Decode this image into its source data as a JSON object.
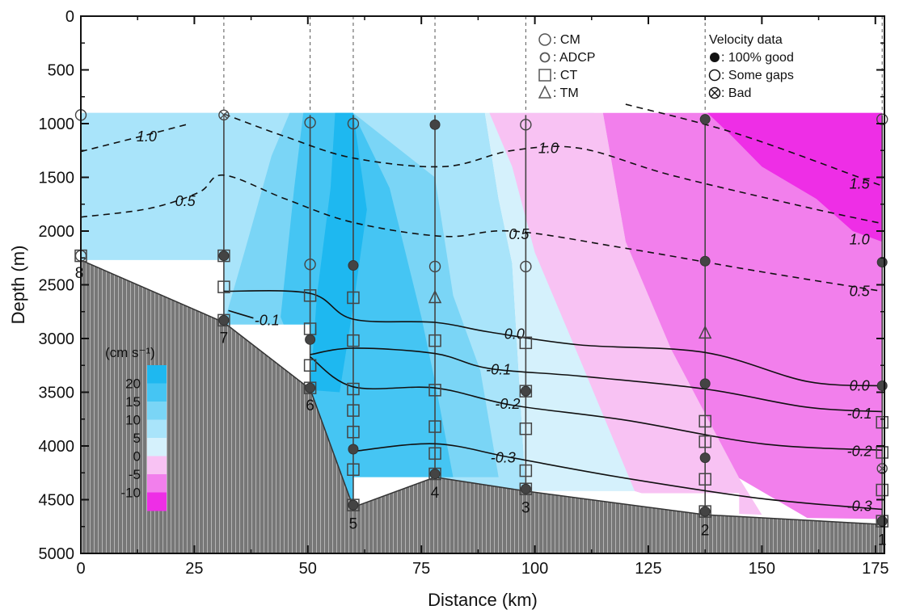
{
  "chart_data": {
    "type": "section",
    "xlabel": "Distance (km)",
    "ylabel": "Depth (m)",
    "xlim": [
      0,
      177
    ],
    "ylim": [
      5000,
      0
    ],
    "xticks": [
      "0",
      "25",
      "50",
      "75",
      "100",
      "125",
      "150",
      "175"
    ],
    "xtick_values": [
      0,
      25,
      50,
      75,
      100,
      125,
      150,
      175
    ],
    "yticks": [
      "0",
      "500",
      "1000",
      "1500",
      "2000",
      "2500",
      "3000",
      "3500",
      "4000",
      "4500",
      "5000"
    ],
    "ytick_values": [
      0,
      500,
      1000,
      1500,
      2000,
      2500,
      3000,
      3500,
      4000,
      4500,
      5000
    ],
    "colorbar": {
      "unit_label": "(cm s⁻¹)",
      "levels": [
        "20",
        "15",
        "10",
        "5",
        "0",
        "-5",
        "-10"
      ],
      "colors": [
        "#1eb8f0",
        "#45c5f3",
        "#7ad5f6",
        "#a9e4fa",
        "#d5f1fc",
        "#f8c2f3",
        "#f27fec",
        "#ee2ee6"
      ]
    },
    "color_bands": [
      {
        "level": "5",
        "color": "#a9e4fa"
      },
      {
        "level": "10",
        "color": "#7ad5f6"
      },
      {
        "level": "15",
        "color": "#45c5f3"
      },
      {
        "level": "20",
        "color": "#1eb8f0"
      },
      {
        "level": "0",
        "color": "#d5f1fc"
      },
      {
        "level": "-5",
        "color": "#f8c2f3"
      },
      {
        "level": "-10",
        "color": "#f27fec"
      },
      {
        "level": "-15",
        "color": "#ee2ee6"
      }
    ],
    "stations": [
      {
        "label": "8",
        "x": 0,
        "bottom_depth": 2240
      },
      {
        "label": "7",
        "x": 31.5,
        "bottom_depth": 2830
      },
      {
        "label": "6",
        "x": 50.5,
        "bottom_depth": 3460
      },
      {
        "label": "5",
        "x": 60,
        "bottom_depth": 4560
      },
      {
        "label": "4",
        "x": 78,
        "bottom_depth": 4270
      },
      {
        "label": "3",
        "x": 98,
        "bottom_depth": 4410
      },
      {
        "label": "2",
        "x": 137.5,
        "bottom_depth": 4620
      },
      {
        "label": "1",
        "x": 176.5,
        "bottom_depth": 4710
      }
    ],
    "bathymetry": [
      [
        0,
        2270
      ],
      [
        31.5,
        2850
      ],
      [
        50.5,
        3470
      ],
      [
        60,
        4570
      ],
      [
        78,
        4290
      ],
      [
        98,
        4420
      ],
      [
        137.5,
        4640
      ],
      [
        176.5,
        4730
      ]
    ],
    "instruments": [
      {
        "x": 0,
        "depth": 920,
        "symbol": "circle",
        "quality": "some_gaps"
      },
      {
        "x": 0,
        "depth": 2230,
        "symbol": "square",
        "quality": "none"
      },
      {
        "x": 0,
        "depth": 2230,
        "symbol": "circle",
        "quality": "some_gaps"
      },
      {
        "x": 31.5,
        "depth": 920,
        "symbol": "circle",
        "quality": "bad"
      },
      {
        "x": 31.5,
        "depth": 2230,
        "symbol": "square",
        "quality": "none"
      },
      {
        "x": 31.5,
        "depth": 2230,
        "symbol": "circle",
        "quality": "good"
      },
      {
        "x": 31.5,
        "depth": 2520,
        "symbol": "square",
        "quality": "none"
      },
      {
        "x": 31.5,
        "depth": 2830,
        "symbol": "square",
        "quality": "none"
      },
      {
        "x": 31.5,
        "depth": 2830,
        "symbol": "circle",
        "quality": "good"
      },
      {
        "x": 50.5,
        "depth": 990,
        "symbol": "circle",
        "quality": "some_gaps"
      },
      {
        "x": 50.5,
        "depth": 2310,
        "symbol": "circle",
        "quality": "some_gaps"
      },
      {
        "x": 50.5,
        "depth": 2600,
        "symbol": "square",
        "quality": "none"
      },
      {
        "x": 50.5,
        "depth": 2910,
        "symbol": "square",
        "quality": "none"
      },
      {
        "x": 50.5,
        "depth": 3010,
        "symbol": "circle",
        "quality": "good"
      },
      {
        "x": 50.5,
        "depth": 3250,
        "symbol": "square",
        "quality": "none"
      },
      {
        "x": 50.5,
        "depth": 3460,
        "symbol": "square",
        "quality": "none"
      },
      {
        "x": 50.5,
        "depth": 3460,
        "symbol": "circle",
        "quality": "good"
      },
      {
        "x": 60,
        "depth": 1000,
        "symbol": "circle",
        "quality": "some_gaps"
      },
      {
        "x": 60,
        "depth": 2320,
        "symbol": "circle",
        "quality": "good"
      },
      {
        "x": 60,
        "depth": 2620,
        "symbol": "square",
        "quality": "none"
      },
      {
        "x": 60,
        "depth": 3020,
        "symbol": "square",
        "quality": "none"
      },
      {
        "x": 60,
        "depth": 3470,
        "symbol": "square",
        "quality": "none"
      },
      {
        "x": 60,
        "depth": 3670,
        "symbol": "square",
        "quality": "none"
      },
      {
        "x": 60,
        "depth": 3870,
        "symbol": "square",
        "quality": "none"
      },
      {
        "x": 60,
        "depth": 4030,
        "symbol": "circle",
        "quality": "good"
      },
      {
        "x": 60,
        "depth": 4220,
        "symbol": "square",
        "quality": "none"
      },
      {
        "x": 60,
        "depth": 4550,
        "symbol": "square",
        "quality": "none"
      },
      {
        "x": 60,
        "depth": 4550,
        "symbol": "circle",
        "quality": "good"
      },
      {
        "x": 78,
        "depth": 1010,
        "symbol": "circle",
        "quality": "good"
      },
      {
        "x": 78,
        "depth": 2330,
        "symbol": "circle",
        "quality": "some_gaps"
      },
      {
        "x": 78,
        "depth": 2620,
        "symbol": "triangle",
        "quality": "none"
      },
      {
        "x": 78,
        "depth": 3020,
        "symbol": "square",
        "quality": "none"
      },
      {
        "x": 78,
        "depth": 3480,
        "symbol": "square",
        "quality": "none"
      },
      {
        "x": 78,
        "depth": 3820,
        "symbol": "square",
        "quality": "none"
      },
      {
        "x": 78,
        "depth": 4070,
        "symbol": "square",
        "quality": "none"
      },
      {
        "x": 78,
        "depth": 4260,
        "symbol": "square",
        "quality": "none"
      },
      {
        "x": 78,
        "depth": 4260,
        "symbol": "circle",
        "quality": "good"
      },
      {
        "x": 98,
        "depth": 1010,
        "symbol": "circle",
        "quality": "some_gaps"
      },
      {
        "x": 98,
        "depth": 2330,
        "symbol": "circle",
        "quality": "some_gaps"
      },
      {
        "x": 98,
        "depth": 3040,
        "symbol": "square",
        "quality": "none"
      },
      {
        "x": 98,
        "depth": 3490,
        "symbol": "square",
        "quality": "none"
      },
      {
        "x": 98,
        "depth": 3490,
        "symbol": "circle",
        "quality": "good"
      },
      {
        "x": 98,
        "depth": 3840,
        "symbol": "square",
        "quality": "none"
      },
      {
        "x": 98,
        "depth": 4230,
        "symbol": "square",
        "quality": "none"
      },
      {
        "x": 98,
        "depth": 4400,
        "symbol": "square",
        "quality": "none"
      },
      {
        "x": 98,
        "depth": 4400,
        "symbol": "circle",
        "quality": "good"
      },
      {
        "x": 137.5,
        "depth": 960,
        "symbol": "circle",
        "quality": "good"
      },
      {
        "x": 137.5,
        "depth": 2280,
        "symbol": "circle",
        "quality": "good"
      },
      {
        "x": 137.5,
        "depth": 2950,
        "symbol": "triangle",
        "quality": "none"
      },
      {
        "x": 137.5,
        "depth": 3420,
        "symbol": "circle",
        "quality": "good"
      },
      {
        "x": 137.5,
        "depth": 3770,
        "symbol": "square",
        "quality": "none"
      },
      {
        "x": 137.5,
        "depth": 3960,
        "symbol": "square",
        "quality": "none"
      },
      {
        "x": 137.5,
        "depth": 4110,
        "symbol": "circle",
        "quality": "good"
      },
      {
        "x": 137.5,
        "depth": 4310,
        "symbol": "square",
        "quality": "none"
      },
      {
        "x": 137.5,
        "depth": 4610,
        "symbol": "square",
        "quality": "none"
      },
      {
        "x": 137.5,
        "depth": 4610,
        "symbol": "circle",
        "quality": "good"
      },
      {
        "x": 176.5,
        "depth": 960,
        "symbol": "circle",
        "quality": "some_gaps"
      },
      {
        "x": 176.5,
        "depth": 2290,
        "symbol": "circle",
        "quality": "good"
      },
      {
        "x": 176.5,
        "depth": 3440,
        "symbol": "circle",
        "quality": "good"
      },
      {
        "x": 176.5,
        "depth": 3780,
        "symbol": "square",
        "quality": "none"
      },
      {
        "x": 176.5,
        "depth": 4060,
        "symbol": "square",
        "quality": "none"
      },
      {
        "x": 176.5,
        "depth": 4210,
        "symbol": "circle",
        "quality": "bad"
      },
      {
        "x": 176.5,
        "depth": 4410,
        "symbol": "square",
        "quality": "none"
      },
      {
        "x": 176.5,
        "depth": 4700,
        "symbol": "square",
        "quality": "none"
      },
      {
        "x": 176.5,
        "depth": 4700,
        "symbol": "circle",
        "quality": "good"
      }
    ],
    "dashed_contours": [
      {
        "label": "1.0",
        "points": [
          [
            0,
            1260
          ],
          [
            15,
            1100
          ],
          [
            24,
            1000
          ]
        ]
      },
      {
        "label": "0.5",
        "points": [
          [
            0,
            1870
          ],
          [
            15,
            1790
          ],
          [
            26,
            1640
          ],
          [
            31.5,
            1480
          ],
          [
            45,
            1700
          ],
          [
            60,
            1920
          ],
          [
            80,
            2050
          ],
          [
            95,
            2000
          ],
          [
            120,
            2160
          ],
          [
            150,
            2380
          ],
          [
            176.5,
            2560
          ]
        ]
      },
      {
        "label": "1.0",
        "points": [
          [
            31.5,
            910
          ],
          [
            45,
            1120
          ],
          [
            60,
            1320
          ],
          [
            80,
            1400
          ],
          [
            95,
            1250
          ],
          [
            110,
            1230
          ],
          [
            130,
            1480
          ],
          [
            160,
            1780
          ],
          [
            176.5,
            1930
          ]
        ]
      },
      {
        "label": "1.5",
        "points": [
          [
            120,
            820
          ],
          [
            145,
            1100
          ],
          [
            176.5,
            1580
          ]
        ]
      }
    ],
    "dashed_labels": [
      {
        "text": "1.0",
        "x": 14.5,
        "y": 1120
      },
      {
        "text": "0.5",
        "x": 23,
        "y": 1720
      },
      {
        "text": "1.0",
        "x": 103,
        "y": 1230
      },
      {
        "text": "0.5",
        "x": 96.5,
        "y": 2030
      },
      {
        "text": "1.5",
        "x": 171.5,
        "y": 1560
      },
      {
        "text": "1.0",
        "x": 171.5,
        "y": 2080
      },
      {
        "text": "0.5",
        "x": 171.5,
        "y": 2560
      }
    ],
    "solid_contours": [
      {
        "label": "-0.1",
        "points": [
          [
            32.5,
            2740
          ],
          [
            38,
            2810
          ]
        ]
      },
      {
        "label": "0.0",
        "points": [
          [
            31.5,
            2560
          ],
          [
            50.5,
            2580
          ],
          [
            60,
            2820
          ],
          [
            78,
            2850
          ],
          [
            90,
            2940
          ],
          [
            110,
            3060
          ],
          [
            137.5,
            3130
          ],
          [
            160,
            3400
          ],
          [
            176.5,
            3440
          ]
        ]
      },
      {
        "label": "-0.1",
        "points": [
          [
            50.5,
            3150
          ],
          [
            60,
            3090
          ],
          [
            78,
            3140
          ],
          [
            90,
            3280
          ],
          [
            110,
            3350
          ],
          [
            137.5,
            3470
          ],
          [
            160,
            3640
          ],
          [
            176.5,
            3680
          ]
        ]
      },
      {
        "label": "-0.2",
        "points": [
          [
            50.5,
            3170
          ],
          [
            60,
            3450
          ],
          [
            78,
            3460
          ],
          [
            95,
            3620
          ],
          [
            120,
            3760
          ],
          [
            150,
            3980
          ],
          [
            176.5,
            4040
          ]
        ]
      },
      {
        "label": "-0.3",
        "points": [
          [
            60,
            4050
          ],
          [
            78,
            3980
          ],
          [
            95,
            4110
          ],
          [
            120,
            4300
          ],
          [
            150,
            4490
          ],
          [
            176.5,
            4590
          ]
        ]
      }
    ],
    "solid_labels": [
      {
        "text": "-0.1",
        "x": 41,
        "y": 2830
      },
      {
        "text": "0.0",
        "x": 95.5,
        "y": 2960
      },
      {
        "text": "-0.1",
        "x": 92,
        "y": 3290
      },
      {
        "text": "-0.2",
        "x": 94,
        "y": 3610
      },
      {
        "text": "-0.3",
        "x": 93,
        "y": 4110
      },
      {
        "text": "0.0",
        "x": 171.5,
        "y": 3440
      },
      {
        "text": "-0.1",
        "x": 171.5,
        "y": 3700
      },
      {
        "text": "-0.2",
        "x": 171.5,
        "y": 4050
      },
      {
        "text": "-0.3",
        "x": 171.5,
        "y": 4560
      }
    ]
  },
  "legend": {
    "instruments": [
      {
        "symbol": "circle",
        "text": ": CM"
      },
      {
        "symbol": "circle-small",
        "text": ": ADCP"
      },
      {
        "symbol": "square",
        "text": ": CT"
      },
      {
        "symbol": "triangle",
        "text": ": TM"
      }
    ],
    "velocity_title": "Velocity data",
    "velocity": [
      {
        "symbol": "filled",
        "text": ": 100% good"
      },
      {
        "symbol": "open",
        "text": ": Some gaps"
      },
      {
        "symbol": "crossed",
        "text": ": Bad"
      }
    ]
  }
}
